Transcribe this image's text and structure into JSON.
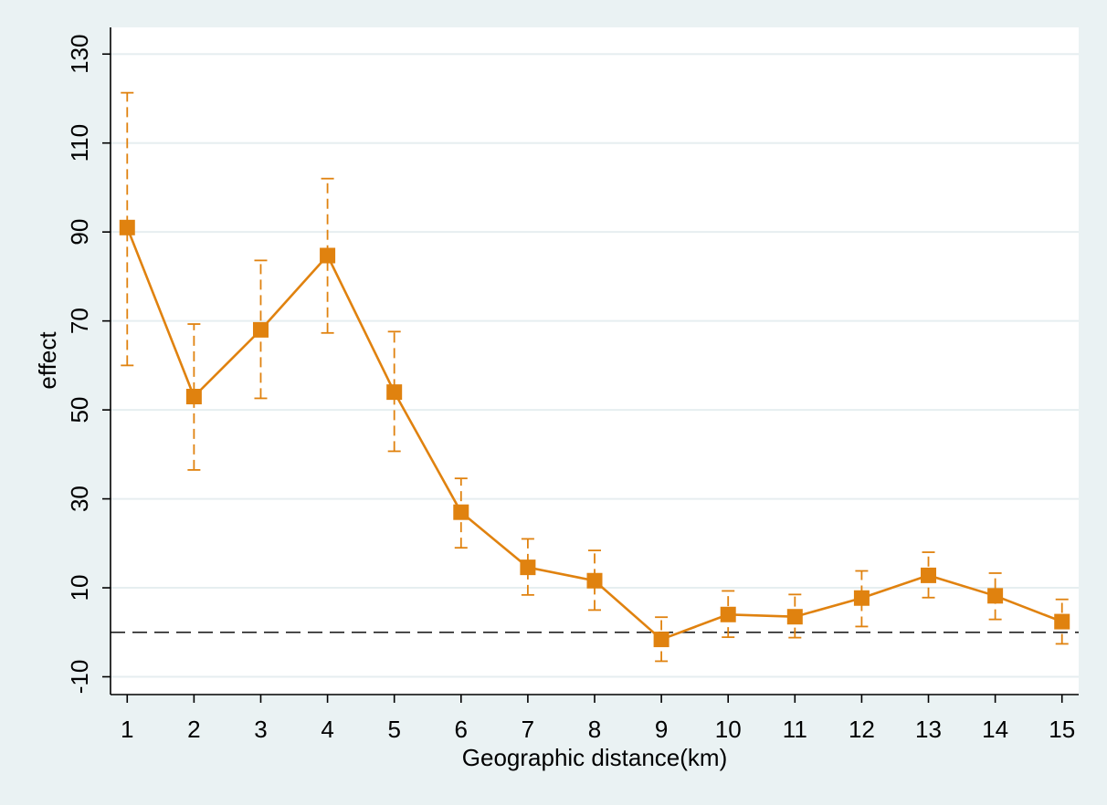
{
  "chart_data": {
    "type": "line",
    "title": "",
    "xlabel": "Geographic distance(km)",
    "ylabel": "effect",
    "x": [
      1,
      2,
      3,
      4,
      5,
      6,
      7,
      8,
      9,
      10,
      11,
      12,
      13,
      14,
      15
    ],
    "x_tick_labels": [
      "1",
      "2",
      "3",
      "4",
      "5",
      "6",
      "7",
      "8",
      "9",
      "10",
      "11",
      "12",
      "13",
      "14",
      "15"
    ],
    "y_tick_labels": [
      "-10",
      "10",
      "30",
      "50",
      "70",
      "90",
      "110",
      "130"
    ],
    "y_ticks": [
      -10,
      10,
      30,
      50,
      70,
      90,
      110,
      130
    ],
    "xlim": [
      0.75,
      15.25
    ],
    "ylim": [
      -14,
      136
    ],
    "reference_line_y": 0,
    "grid": "horizontal",
    "series": [
      {
        "values": [
          91,
          53,
          68,
          84.7,
          54,
          27,
          14.6,
          11.6,
          -1.6,
          4,
          3.5,
          7.7,
          12.8,
          8.2,
          2.4
        ],
        "ci_low": [
          60,
          36.5,
          52.6,
          67.3,
          40.7,
          19,
          8.4,
          5,
          -6.5,
          -1.1,
          -1.2,
          1.3,
          7.8,
          2.9,
          -2.6
        ],
        "ci_high": [
          121.3,
          69.3,
          83.6,
          102,
          67.6,
          34.6,
          21,
          18.4,
          3.4,
          9.3,
          8.5,
          13.8,
          18,
          13.3,
          7.4
        ]
      }
    ],
    "colors": {
      "series": "#e0820f",
      "background": "#eaf2f3",
      "plot_background": "#ffffff",
      "grid": "#e6eef0",
      "axis": "#000000",
      "reference_line": "#222222"
    }
  }
}
